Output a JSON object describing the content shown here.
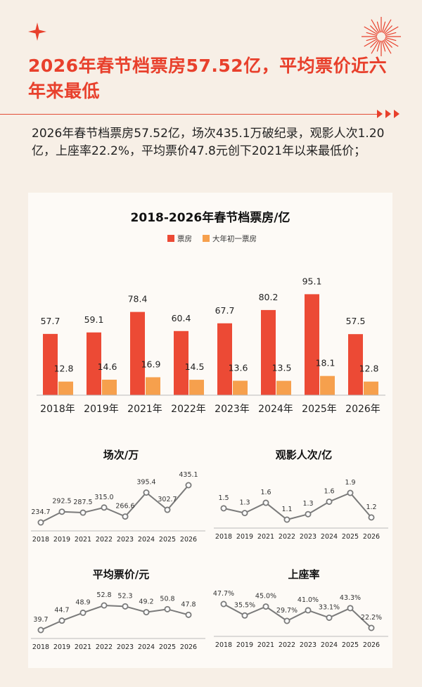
{
  "header": {
    "title": "2026年春节档票房57.52亿，平均票价近六年来最低",
    "intro": "2026年春节档票房57.52亿，场次435.1万破纪录，观影人次1.20亿，上座率22.2%，平均票价47.8元创下2021年以来最低价；"
  },
  "colors": {
    "accent": "#e8402c",
    "bar_primary": "#ec4a35",
    "bar_secondary": "#f6a04d",
    "line": "#7a7a7a"
  },
  "chart_data": [
    {
      "type": "bar",
      "title": "2018-2026年春节档票房/亿",
      "categories": [
        "2018年",
        "2019年",
        "2021年",
        "2022年",
        "2023年",
        "2024年",
        "2025年",
        "2026年"
      ],
      "series": [
        {
          "name": "票房",
          "values": [
            57.7,
            59.1,
            78.4,
            60.4,
            67.7,
            80.2,
            95.1,
            57.5
          ]
        },
        {
          "name": "大年初一票房",
          "values": [
            12.8,
            14.6,
            16.9,
            14.5,
            13.6,
            13.5,
            18.1,
            12.8
          ]
        }
      ],
      "ylim": [
        0,
        110
      ],
      "legend": "top-center",
      "grid": false
    },
    {
      "type": "line",
      "title": "场次/万",
      "categories": [
        "2018",
        "2019",
        "2021",
        "2022",
        "2023",
        "2024",
        "2025",
        "2026"
      ],
      "values": [
        234.7,
        292.5,
        287.5,
        315.0,
        266.6,
        395.4,
        302.7,
        435.1
      ],
      "labels": [
        "234.7",
        "292.5",
        "287.5",
        "315.0",
        "266.6",
        "395.4",
        "302.7",
        "435.1"
      ]
    },
    {
      "type": "line",
      "title": "观影人次/亿",
      "categories": [
        "2018",
        "2019",
        "2021",
        "2022",
        "2023",
        "2024",
        "2025",
        "2026"
      ],
      "values": [
        1.45,
        1.32,
        1.6,
        1.14,
        1.29,
        1.63,
        1.87,
        1.2
      ],
      "labels": [
        "1.5",
        "1.3",
        "1.6",
        "1.1",
        "1.3",
        "1.6",
        "1.9",
        "1.2"
      ]
    },
    {
      "type": "line",
      "title": "平均票价/元",
      "categories": [
        "2018",
        "2019",
        "2021",
        "2022",
        "2023",
        "2024",
        "2025",
        "2026"
      ],
      "values": [
        39.7,
        44.7,
        48.9,
        52.8,
        52.3,
        49.2,
        50.8,
        47.8
      ],
      "labels": [
        "39.7",
        "44.7",
        "48.9",
        "52.8",
        "52.3",
        "49.2",
        "50.8",
        "47.8"
      ]
    },
    {
      "type": "line",
      "title": "上座率",
      "categories": [
        "2018",
        "2019",
        "2021",
        "2022",
        "2023",
        "2024",
        "2025",
        "2026"
      ],
      "values": [
        47.7,
        35.5,
        45.0,
        29.7,
        41.0,
        33.1,
        43.3,
        22.2
      ],
      "labels": [
        "47.7%",
        "35.5%",
        "45.0%",
        "29.7%",
        "41.0%",
        "33.1%",
        "43.3%",
        "22.2%"
      ]
    }
  ]
}
